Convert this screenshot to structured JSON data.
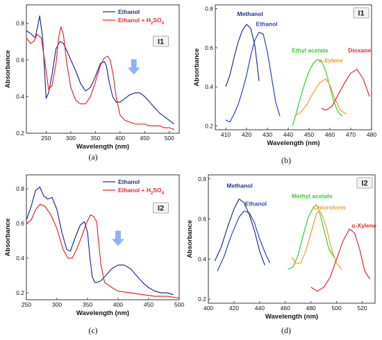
{
  "colors": {
    "ethanol_blue": "#1f2f8f",
    "red": "#e8262a",
    "methanol": "#1f2f8f",
    "ethanol_b": "#2a3fcc",
    "green": "#33cc33",
    "orange": "#f39a2a",
    "dioxane": "#e0262a",
    "arrow": "#8fb3ee"
  },
  "chart_data": [
    {
      "id": "a",
      "type": "line",
      "sublabel": "(a)",
      "tag": "I1",
      "xlabel": "Wavelength (nm)",
      "ylabel": "Absorbance",
      "xlim": [
        210,
        520
      ],
      "ylim": [
        0.2,
        0.9
      ],
      "xticks": [
        250,
        300,
        350,
        400,
        450,
        500
      ],
      "yticks": [
        0.2,
        0.4,
        0.6,
        0.8
      ],
      "legend_position": "top-right",
      "arrow_at": {
        "x": 428,
        "y": 0.52
      },
      "series": [
        {
          "name": "Ethanol",
          "color": "ethanol_blue",
          "x": [
            210,
            220,
            228,
            237,
            243,
            250,
            255,
            262,
            270,
            278,
            285,
            292,
            300,
            310,
            320,
            330,
            340,
            350,
            360,
            368,
            372,
            378,
            385,
            392,
            400,
            410,
            420,
            430,
            440,
            450,
            460,
            470,
            480,
            490,
            500,
            510
          ],
          "y": [
            0.76,
            0.74,
            0.72,
            0.84,
            0.72,
            0.39,
            0.42,
            0.52,
            0.66,
            0.7,
            0.69,
            0.65,
            0.6,
            0.54,
            0.47,
            0.43,
            0.45,
            0.51,
            0.58,
            0.59,
            0.57,
            0.48,
            0.4,
            0.37,
            0.37,
            0.39,
            0.41,
            0.42,
            0.42,
            0.4,
            0.37,
            0.34,
            0.31,
            0.29,
            0.27,
            0.25
          ]
        },
        {
          "name": "Ethanol + H₂SO₄",
          "color": "red",
          "x": [
            210,
            218,
            225,
            232,
            240,
            248,
            255,
            262,
            270,
            276,
            280,
            285,
            292,
            300,
            310,
            320,
            330,
            340,
            350,
            360,
            368,
            375,
            380,
            386,
            392,
            400,
            410,
            420,
            430,
            440,
            450,
            460,
            470,
            480,
            490,
            500,
            510
          ],
          "y": [
            0.72,
            0.69,
            0.7,
            0.74,
            0.72,
            0.58,
            0.44,
            0.46,
            0.58,
            0.73,
            0.78,
            0.74,
            0.58,
            0.45,
            0.38,
            0.36,
            0.36,
            0.4,
            0.48,
            0.57,
            0.61,
            0.62,
            0.6,
            0.52,
            0.4,
            0.3,
            0.27,
            0.26,
            0.25,
            0.25,
            0.25,
            0.24,
            0.24,
            0.24,
            0.23,
            0.23,
            0.22
          ]
        }
      ]
    },
    {
      "id": "b",
      "type": "line",
      "sublabel": "(b)",
      "tag": "I1",
      "xlabel": "Wavelength (nm)",
      "ylabel": "Absorbance",
      "xlim": [
        405,
        480
      ],
      "ylim": [
        0.18,
        0.82
      ],
      "xticks": [
        410,
        420,
        430,
        440,
        450,
        460,
        470,
        480
      ],
      "yticks": [
        0.2,
        0.4,
        0.6,
        0.8
      ],
      "series": [
        {
          "name": "Methanol",
          "color": "methanol",
          "x": [
            410,
            412,
            414,
            416,
            418,
            420,
            422,
            424,
            426
          ],
          "y": [
            0.4,
            0.46,
            0.55,
            0.63,
            0.69,
            0.72,
            0.7,
            0.61,
            0.43
          ]
        },
        {
          "name": "Ethanol",
          "color": "ethanol_b",
          "x": [
            410,
            412,
            414,
            416,
            418,
            420,
            422,
            424,
            426,
            428,
            430,
            432,
            434,
            436
          ],
          "y": [
            0.23,
            0.22,
            0.26,
            0.31,
            0.38,
            0.46,
            0.56,
            0.64,
            0.68,
            0.67,
            0.58,
            0.45,
            0.32,
            0.25
          ]
        },
        {
          "name": "Ethyl acetate",
          "color": "green",
          "x": [
            442,
            444,
            446,
            448,
            450,
            452,
            454,
            456,
            458,
            460,
            462,
            464,
            466
          ],
          "y": [
            0.2,
            0.27,
            0.35,
            0.42,
            0.48,
            0.52,
            0.54,
            0.53,
            0.48,
            0.4,
            0.32,
            0.27,
            0.25
          ]
        },
        {
          "name": "o-Xylene",
          "color": "orange",
          "x": [
            443,
            446,
            449,
            452,
            455,
            458,
            460,
            462,
            465,
            468
          ],
          "y": [
            0.25,
            0.27,
            0.31,
            0.37,
            0.42,
            0.44,
            0.41,
            0.35,
            0.28,
            0.26
          ]
        },
        {
          "name": "Dioxane",
          "color": "dioxane",
          "x": [
            456,
            458,
            461,
            464,
            467,
            470,
            473,
            476,
            479
          ],
          "y": [
            0.29,
            0.28,
            0.3,
            0.36,
            0.42,
            0.47,
            0.49,
            0.44,
            0.35
          ]
        }
      ]
    },
    {
      "id": "c",
      "type": "line",
      "sublabel": "(c)",
      "tag": "I2",
      "xlabel": "Wavelength (nm)",
      "ylabel": "Absorbance",
      "xlim": [
        250,
        500
      ],
      "ylim": [
        0.16,
        0.88
      ],
      "xticks": [
        250,
        300,
        350,
        400,
        450,
        500
      ],
      "yticks": [
        0.2,
        0.4,
        0.6,
        0.8
      ],
      "legend_position": "top-right",
      "arrow_at": {
        "x": 400,
        "y": 0.47
      },
      "series": [
        {
          "name": "Ethanol",
          "color": "ethanol_blue",
          "x": [
            250,
            258,
            265,
            272,
            278,
            285,
            292,
            300,
            308,
            316,
            322,
            330,
            338,
            345,
            350,
            354,
            358,
            362,
            366,
            372,
            380,
            390,
            400,
            410,
            420,
            430,
            440,
            450,
            460,
            470,
            480,
            490
          ],
          "y": [
            0.62,
            0.7,
            0.79,
            0.81,
            0.76,
            0.74,
            0.75,
            0.68,
            0.55,
            0.45,
            0.44,
            0.52,
            0.59,
            0.61,
            0.55,
            0.4,
            0.29,
            0.26,
            0.26,
            0.27,
            0.3,
            0.34,
            0.36,
            0.36,
            0.34,
            0.3,
            0.26,
            0.23,
            0.21,
            0.2,
            0.2,
            0.19
          ]
        },
        {
          "name": "Ethanol + H₂SO₄",
          "color": "red",
          "x": [
            250,
            258,
            265,
            272,
            280,
            290,
            300,
            310,
            318,
            325,
            332,
            340,
            348,
            355,
            360,
            365,
            368,
            372,
            378,
            390,
            400,
            420,
            440,
            460,
            480,
            500
          ],
          "y": [
            0.6,
            0.62,
            0.68,
            0.71,
            0.7,
            0.65,
            0.57,
            0.45,
            0.4,
            0.4,
            0.45,
            0.52,
            0.6,
            0.65,
            0.64,
            0.61,
            0.5,
            0.36,
            0.26,
            0.23,
            0.21,
            0.2,
            0.19,
            0.18,
            0.18,
            0.17
          ]
        }
      ]
    },
    {
      "id": "d",
      "type": "line",
      "sublabel": "(d)",
      "tag": "I2",
      "xlabel": "Wavelength (nm)",
      "ylabel": "Absorbance",
      "xlim": [
        400,
        530
      ],
      "ylim": [
        0.18,
        0.82
      ],
      "xticks": [
        400,
        420,
        440,
        460,
        480,
        500,
        520
      ],
      "yticks": [
        0.2,
        0.4,
        0.6,
        0.8
      ],
      "series": [
        {
          "name": "Methanol",
          "color": "methanol",
          "x": [
            405,
            410,
            415,
            420,
            424,
            428,
            432,
            436,
            440,
            444
          ],
          "y": [
            0.39,
            0.46,
            0.56,
            0.65,
            0.7,
            0.68,
            0.62,
            0.54,
            0.44,
            0.37
          ]
        },
        {
          "name": "Ethanol",
          "color": "ethanol_b",
          "x": [
            407,
            412,
            418,
            424,
            428,
            432,
            436,
            440,
            445,
            448
          ],
          "y": [
            0.34,
            0.41,
            0.52,
            0.61,
            0.64,
            0.63,
            0.58,
            0.5,
            0.42,
            0.38
          ]
        },
        {
          "name": "Methyl acetate",
          "color": "green",
          "x": [
            462,
            466,
            470,
            474,
            478,
            482,
            484,
            486,
            490,
            494,
            498
          ],
          "y": [
            0.35,
            0.36,
            0.42,
            0.52,
            0.61,
            0.66,
            0.67,
            0.65,
            0.55,
            0.45,
            0.41
          ]
        },
        {
          "name": "Chloroform",
          "color": "orange",
          "x": [
            465,
            468,
            472,
            476,
            480,
            484,
            486,
            488,
            492,
            496,
            500,
            504
          ],
          "y": [
            0.41,
            0.38,
            0.38,
            0.44,
            0.53,
            0.62,
            0.64,
            0.63,
            0.56,
            0.45,
            0.38,
            0.35
          ]
        },
        {
          "name": "o-Xylene",
          "color": "dioxane",
          "x": [
            480,
            485,
            490,
            495,
            500,
            505,
            510,
            514,
            518,
            522,
            526
          ],
          "y": [
            0.26,
            0.24,
            0.26,
            0.31,
            0.4,
            0.49,
            0.55,
            0.53,
            0.45,
            0.34,
            0.3
          ]
        }
      ]
    }
  ],
  "legend_labels": {
    "ethanol": "Ethanol",
    "ethanol_acid_main": "Ethanol + H",
    "ethanol_acid_sub": "2",
    "ethanol_acid_tail": "SO",
    "ethanol_acid_sub2": "4"
  }
}
